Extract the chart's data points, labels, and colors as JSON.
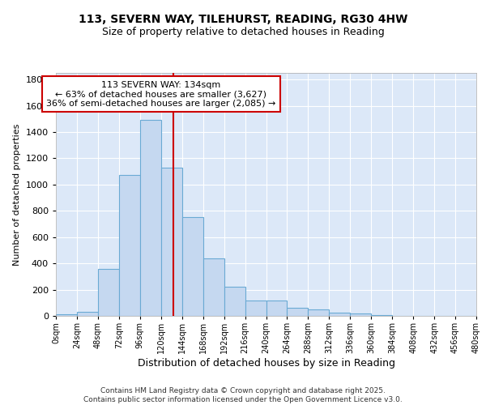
{
  "title1": "113, SEVERN WAY, TILEHURST, READING, RG30 4HW",
  "title2": "Size of property relative to detached houses in Reading",
  "xlabel": "Distribution of detached houses by size in Reading",
  "ylabel": "Number of detached properties",
  "bin_edges": [
    0,
    24,
    48,
    72,
    96,
    120,
    144,
    168,
    192,
    216,
    240,
    264,
    288,
    312,
    336,
    360,
    384,
    408,
    432,
    456,
    480
  ],
  "bar_heights": [
    10,
    30,
    360,
    1070,
    1490,
    1130,
    750,
    435,
    225,
    115,
    115,
    60,
    50,
    25,
    20,
    5,
    3,
    2,
    1,
    1
  ],
  "bar_color": "#c5d8f0",
  "bar_edgecolor": "#6aaad4",
  "bg_color": "#dce8f8",
  "grid_color": "#ffffff",
  "fig_bg_color": "#ffffff",
  "annotation_line1": "113 SEVERN WAY: 134sqm",
  "annotation_line2": "← 63% of detached houses are smaller (3,627)",
  "annotation_line3": "36% of semi-detached houses are larger (2,085) →",
  "annotation_box_edgecolor": "#cc0000",
  "vline_x": 134,
  "vline_color": "#cc0000",
  "ylim": [
    0,
    1850
  ],
  "xlim": [
    0,
    480
  ],
  "footer_text": "Contains HM Land Registry data © Crown copyright and database right 2025.\nContains public sector information licensed under the Open Government Licence v3.0.",
  "tick_labels": [
    "0sqm",
    "24sqm",
    "48sqm",
    "72sqm",
    "96sqm",
    "120sqm",
    "144sqm",
    "168sqm",
    "192sqm",
    "216sqm",
    "240sqm",
    "264sqm",
    "288sqm",
    "312sqm",
    "336sqm",
    "360sqm",
    "384sqm",
    "408sqm",
    "432sqm",
    "456sqm",
    "480sqm"
  ],
  "yticks": [
    0,
    200,
    400,
    600,
    800,
    1000,
    1200,
    1400,
    1600,
    1800
  ]
}
